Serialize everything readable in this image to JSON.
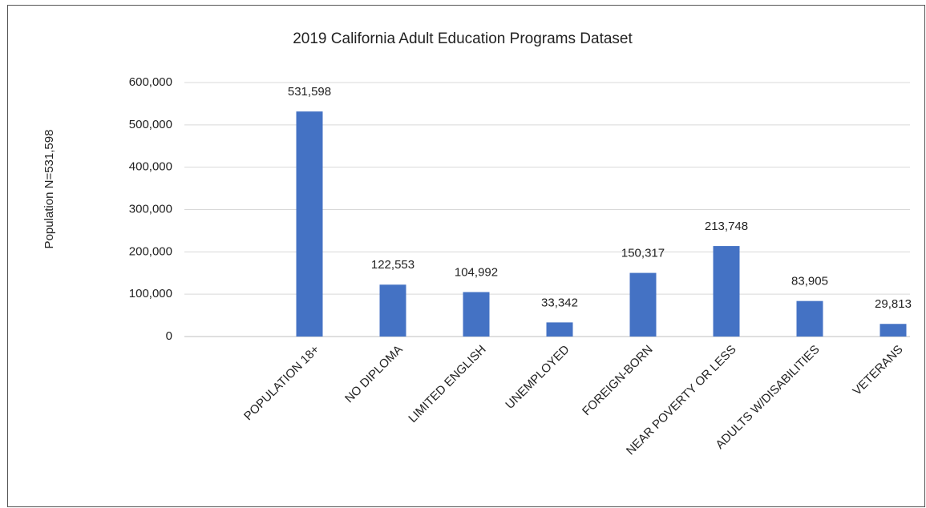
{
  "chart_data": {
    "type": "bar",
    "title": "2019 California Adult Education Programs Dataset",
    "y_label": "Population  N=531,598",
    "categories": [
      "POPULATION 18+",
      "NO DIPLOMA",
      "LIMITED ENGLISH",
      "UNEMPLOYED",
      "FOREIGN-BORN",
      "NEAR POVERTY OR LESS",
      "ADULTS W/DISABILITIES",
      "VETERANS"
    ],
    "values": [
      531598,
      122553,
      104992,
      33342,
      150317,
      213748,
      83905,
      29813
    ],
    "value_labels": [
      "531,598",
      "122,553",
      "104,992",
      "33,342",
      "150,317",
      "213,748",
      "83,905",
      "29,813"
    ],
    "color": "#4472c4",
    "ylim": [
      0,
      600000
    ],
    "yticks": [
      0,
      {
        "value": 100000,
        "label": "100,000"
      },
      {
        "value": 200000,
        "label": "200,000"
      },
      {
        "value": 300000,
        "label": "300,000"
      },
      {
        "value": 400000,
        "label": "400,000"
      },
      {
        "value": 500000,
        "label": "500,000"
      },
      {
        "value": 600000,
        "label": "600,000"
      }
    ],
    "grid": true
  }
}
